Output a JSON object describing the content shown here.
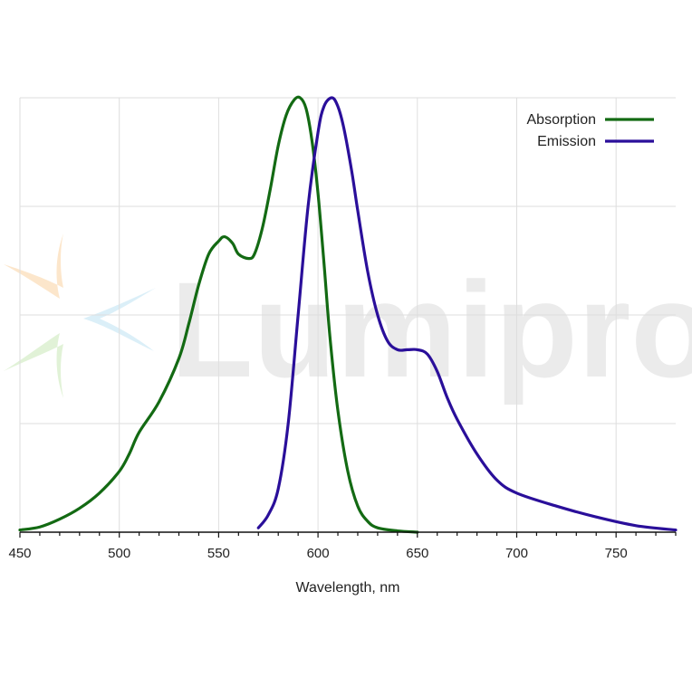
{
  "watermark": {
    "text": "Lumiprobe",
    "kind": "logo"
  },
  "chart_data": {
    "type": "line",
    "title": "",
    "xlabel": "Wavelength, nm",
    "ylabel": "",
    "xlim": [
      450,
      780
    ],
    "ylim": [
      0,
      1
    ],
    "x_ticks": [
      450,
      500,
      550,
      600,
      650,
      700,
      750
    ],
    "x_minor_step": 10,
    "y_grid": [
      0.25,
      0.5,
      0.75,
      1.0
    ],
    "grid": true,
    "legend_position": "top-right",
    "series": [
      {
        "name": "Absorption",
        "color": "#136a13",
        "x": [
          450,
          460,
          470,
          480,
          490,
          500,
          505,
          510,
          520,
          530,
          535,
          540,
          545,
          550,
          553,
          557,
          560,
          565,
          568,
          572,
          576,
          580,
          584,
          588,
          591,
          594,
          597,
          600,
          603,
          606,
          610,
          615,
          620,
          625,
          630,
          640,
          650
        ],
        "y": [
          0.005,
          0.012,
          0.03,
          0.055,
          0.09,
          0.14,
          0.18,
          0.23,
          0.3,
          0.4,
          0.48,
          0.57,
          0.64,
          0.67,
          0.68,
          0.665,
          0.64,
          0.63,
          0.64,
          0.7,
          0.79,
          0.89,
          0.96,
          0.995,
          1.0,
          0.975,
          0.9,
          0.78,
          0.62,
          0.45,
          0.28,
          0.14,
          0.06,
          0.025,
          0.01,
          0.003,
          0.0
        ]
      },
      {
        "name": "Emission",
        "color": "#2a0f9a",
        "x": [
          570,
          575,
          580,
          585,
          590,
          595,
          600,
          603,
          607,
          610,
          613,
          617,
          620,
          625,
          630,
          635,
          640,
          645,
          650,
          655,
          660,
          665,
          670,
          680,
          690,
          700,
          720,
          740,
          760,
          780
        ],
        "y": [
          0.01,
          0.04,
          0.1,
          0.25,
          0.5,
          0.75,
          0.92,
          0.98,
          1.0,
          0.98,
          0.93,
          0.83,
          0.74,
          0.6,
          0.5,
          0.44,
          0.42,
          0.42,
          0.42,
          0.41,
          0.37,
          0.31,
          0.26,
          0.18,
          0.12,
          0.09,
          0.06,
          0.035,
          0.015,
          0.005
        ]
      }
    ]
  }
}
